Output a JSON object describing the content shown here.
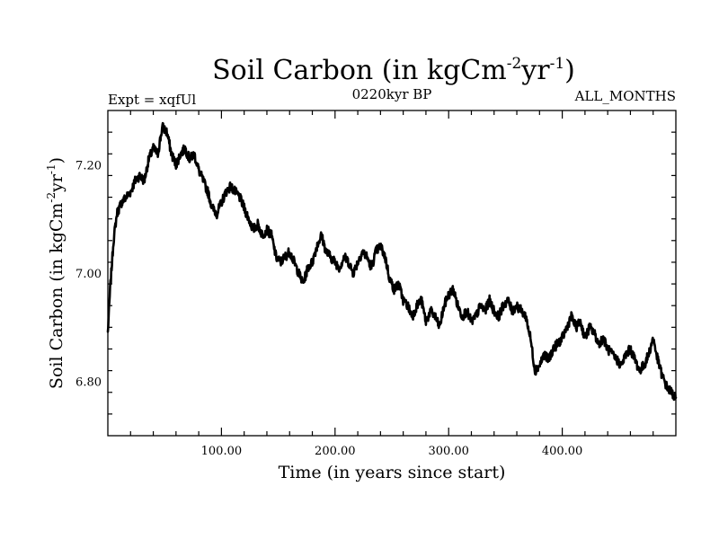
{
  "chart_data": {
    "type": "line",
    "title": {
      "main": "Soil Carbon (in kgCm",
      "exp1": "-2",
      "mid": "yr",
      "exp2": "-1",
      "end": ")"
    },
    "subtitle_left": "Expt = xqfUl",
    "subtitle_center": "0220kyr BP",
    "subtitle_right": "ALL_MONTHS",
    "xlabel": "Time (in years since start)",
    "ylabel": {
      "main": "Soil Carbon (in kgCm",
      "exp1": "-2",
      "mid": "yr",
      "exp2": "-1",
      "end": ")"
    },
    "xlim": [
      0,
      500
    ],
    "ylim": [
      6.7,
      7.3
    ],
    "x_ticks": [
      {
        "value": 100,
        "label": "100.00"
      },
      {
        "value": 200,
        "label": "200.00"
      },
      {
        "value": 300,
        "label": "300.00"
      },
      {
        "value": 400,
        "label": "400.00"
      }
    ],
    "y_ticks": [
      {
        "value": 6.8,
        "label": "6.80"
      },
      {
        "value": 7.0,
        "label": "7.00"
      },
      {
        "value": 7.2,
        "label": "7.20"
      }
    ],
    "line_color": "#000000",
    "series": [
      {
        "x": [
          0,
          2,
          5,
          8,
          12,
          16,
          20,
          24,
          28,
          32,
          36,
          40,
          44,
          48,
          52,
          56,
          60,
          64,
          68,
          72,
          76,
          80,
          84,
          88,
          92,
          96,
          100,
          104,
          108,
          112,
          116,
          120,
          124,
          128,
          132,
          136,
          140,
          144,
          148,
          152,
          156,
          160,
          164,
          168,
          172,
          176,
          180,
          184,
          188,
          192,
          196,
          200,
          204,
          208,
          212,
          216,
          220,
          224,
          228,
          232,
          236,
          240,
          244,
          248,
          252,
          256,
          260,
          264,
          268,
          272,
          276,
          280,
          284,
          288,
          292,
          296,
          300,
          304,
          308,
          312,
          316,
          320,
          324,
          328,
          332,
          336,
          340,
          344,
          348,
          352,
          356,
          360,
          364,
          368,
          372,
          376,
          380,
          384,
          388,
          392,
          396,
          400,
          404,
          408,
          412,
          416,
          420,
          424,
          428,
          432,
          436,
          440,
          444,
          448,
          452,
          456,
          460,
          464,
          468,
          472,
          476,
          480,
          484,
          488,
          492,
          496,
          500
        ],
        "y": [
          6.89,
          6.97,
          7.06,
          7.11,
          7.13,
          7.14,
          7.15,
          7.17,
          7.18,
          7.17,
          7.21,
          7.23,
          7.22,
          7.27,
          7.26,
          7.22,
          7.2,
          7.22,
          7.23,
          7.21,
          7.22,
          7.19,
          7.17,
          7.15,
          7.12,
          7.11,
          7.13,
          7.15,
          7.16,
          7.15,
          7.14,
          7.12,
          7.1,
          7.08,
          7.09,
          7.07,
          7.08,
          7.07,
          7.03,
          7.02,
          7.03,
          7.04,
          7.02,
          7.0,
          6.98,
          7.01,
          7.02,
          7.05,
          7.07,
          7.04,
          7.03,
          7.02,
          7.01,
          7.03,
          7.02,
          7.0,
          7.02,
          7.04,
          7.03,
          7.01,
          7.04,
          7.05,
          7.03,
          6.99,
          6.97,
          6.98,
          6.95,
          6.94,
          6.92,
          6.94,
          6.95,
          6.91,
          6.93,
          6.92,
          6.9,
          6.94,
          6.96,
          6.97,
          6.94,
          6.92,
          6.93,
          6.91,
          6.92,
          6.94,
          6.93,
          6.95,
          6.93,
          6.92,
          6.94,
          6.95,
          6.93,
          6.94,
          6.93,
          6.92,
          6.88,
          6.82,
          6.83,
          6.85,
          6.84,
          6.86,
          6.87,
          6.88,
          6.9,
          6.92,
          6.9,
          6.91,
          6.88,
          6.9,
          6.89,
          6.87,
          6.88,
          6.86,
          6.85,
          6.84,
          6.83,
          6.85,
          6.86,
          6.84,
          6.82,
          6.83,
          6.85,
          6.88,
          6.84,
          6.81,
          6.79,
          6.78,
          6.77
        ]
      }
    ]
  }
}
